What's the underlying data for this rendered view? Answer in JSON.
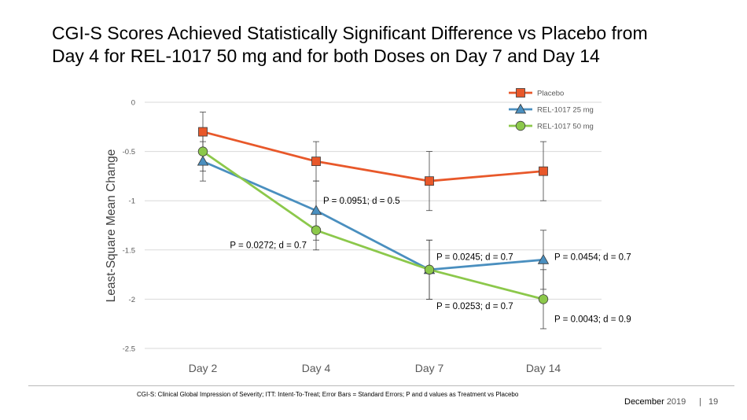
{
  "slide": {
    "title_line1": "CGI-S  Scores Achieved Statistically Significant Difference vs Placebo from",
    "title_line2": "Day 4 for REL-1017 50 mg and for both Doses on Day 7 and Day 14",
    "footnote": "CGI-S: Clinical Global Impression of Severity; ITT: Intent-To-Treat; Error Bars = Standard Errors; P and d values as Treatment vs Placebo",
    "date_month": "December",
    "date_year": "2019",
    "separator": "|",
    "page_number": "19"
  },
  "chart_data": {
    "type": "line",
    "title": "",
    "xlabel": "",
    "ylabel": "Least-Square Mean Change",
    "categories": [
      "Day 2",
      "Day 4",
      "Day 7",
      "Day 14"
    ],
    "ylim": [
      -2.5,
      0
    ],
    "yticks": [
      0,
      -0.5,
      -1,
      -1.5,
      -2,
      -2.5
    ],
    "ytick_labels": [
      "0",
      "-0.5",
      "-1",
      "-1.5",
      "-2",
      "-2.5"
    ],
    "grid": true,
    "legend_position": "top-right",
    "series": [
      {
        "name": "Placebo",
        "color": "#E8582A",
        "marker": "square",
        "values": [
          -0.3,
          -0.6,
          -0.8,
          -0.7
        ],
        "error": [
          0.2,
          0.2,
          0.3,
          0.3
        ]
      },
      {
        "name": "REL-1017 25 mg",
        "color": "#4A8FBF",
        "marker": "triangle",
        "values": [
          -0.6,
          -1.1,
          -1.7,
          -1.6
        ],
        "error": [
          0.2,
          0.3,
          0.3,
          0.3
        ]
      },
      {
        "name": "REL-1017 50 mg",
        "color": "#8CC84B",
        "marker": "circle",
        "values": [
          -0.5,
          -1.3,
          -1.7,
          -2.0
        ],
        "error": [
          0.2,
          0.2,
          0.3,
          0.3
        ]
      }
    ],
    "annotations": [
      {
        "text": "P = 0.0951; d = 0.5",
        "category": "Day 4",
        "y": -1.0
      },
      {
        "text": "P = 0.0272; d = 0.7",
        "category": "Day 4",
        "y": -1.45
      },
      {
        "text": "P = 0.0245; d = 0.7",
        "category": "Day 7",
        "y": -1.57
      },
      {
        "text": "P = 0.0253; d = 0.7",
        "category": "Day 7",
        "y": -2.07
      },
      {
        "text": "P = 0.0454; d = 0.7",
        "category": "Day 14",
        "y": -1.57
      },
      {
        "text": "P = 0.0043; d = 0.9",
        "category": "Day 14",
        "y": -2.2
      }
    ]
  }
}
